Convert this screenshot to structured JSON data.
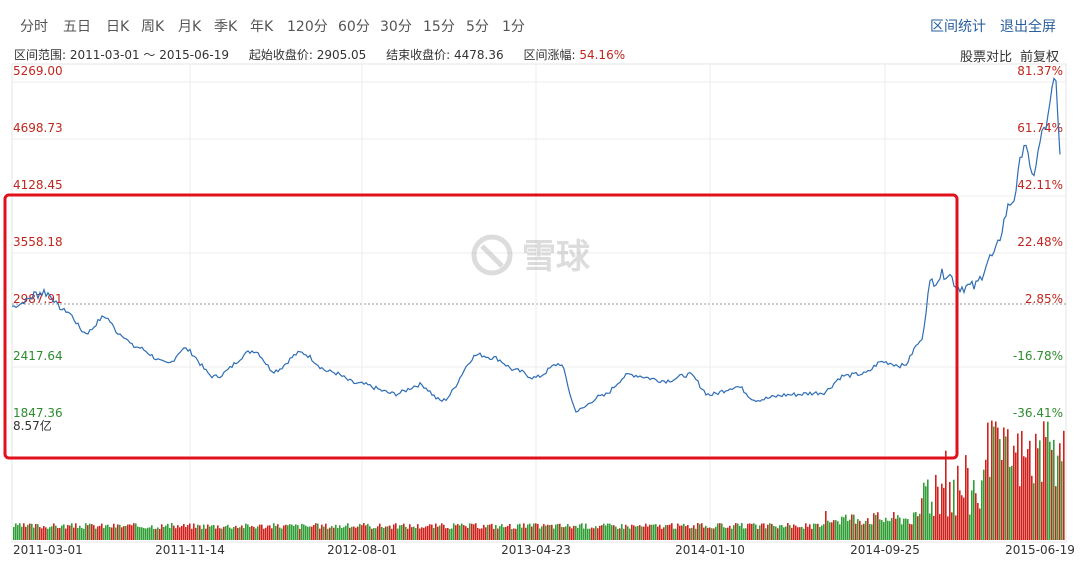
{
  "toolbar": {
    "tabs": [
      "分时",
      "五日",
      "日K",
      "周K",
      "月K",
      "季K",
      "年K",
      "120分",
      "60分",
      "30分",
      "15分",
      "5分",
      "1分"
    ],
    "stats_label": "区间统计",
    "exit_label": "退出全屏"
  },
  "info": {
    "range_label": "区间范围:",
    "range_value": "2011-03-01 ～ 2015-06-19",
    "open_label": "起始收盘价:",
    "open_value": "2905.05",
    "close_label": "结束收盘价:",
    "close_value": "4478.36",
    "change_label": "区间涨幅:",
    "change_value": "54.16%"
  },
  "tools": {
    "compare": "股票对比",
    "adjust": "前复权"
  },
  "watermark": "雪球",
  "colors": {
    "line": "#2e6db4",
    "up": "#d0221d",
    "down": "#2f9e35",
    "highlight": "#e0111b",
    "axis_left": "#c0261f",
    "axis_left_green": "#2e8b2e"
  },
  "chart_data": {
    "type": "line",
    "y_ticks_left": [
      "5269.00",
      "4698.73",
      "4128.45",
      "3558.18",
      "2987.91",
      "2417.64",
      "1847.36"
    ],
    "y_ticks_right": [
      "81.37%",
      "61.74%",
      "42.11%",
      "22.48%",
      "2.85%",
      "-16.78%",
      "-36.41%"
    ],
    "ylim": [
      1847.36,
      5269.0
    ],
    "x_ticks": [
      "2011-03-01",
      "2011-11-14",
      "2012-08-01",
      "2013-04-23",
      "2014-01-10",
      "2014-09-25",
      "2015-06-19"
    ],
    "volume_label": "8.57亿",
    "series": [
      {
        "points": [
          [
            "2011-03-01",
            2905
          ],
          [
            "2011-04-18",
            3050
          ],
          [
            "2011-05-20",
            2860
          ],
          [
            "2011-06-20",
            2640
          ],
          [
            "2011-07-18",
            2800
          ],
          [
            "2011-08-10",
            2630
          ],
          [
            "2011-09-01",
            2500
          ],
          [
            "2011-10-21",
            2330
          ],
          [
            "2011-11-14",
            2480
          ],
          [
            "2011-12-30",
            2200
          ],
          [
            "2012-02-27",
            2460
          ],
          [
            "2012-03-28",
            2260
          ],
          [
            "2012-05-07",
            2440
          ],
          [
            "2012-06-20",
            2250
          ],
          [
            "2012-08-01",
            2130
          ],
          [
            "2012-09-26",
            2030
          ],
          [
            "2012-11-02",
            2120
          ],
          [
            "2012-12-04",
            1960
          ],
          [
            "2013-01-28",
            2420
          ],
          [
            "2013-02-20",
            2390
          ],
          [
            "2013-03-27",
            2260
          ],
          [
            "2013-04-23",
            2190
          ],
          [
            "2013-05-30",
            2330
          ],
          [
            "2013-06-25",
            1860
          ],
          [
            "2013-07-30",
            2000
          ],
          [
            "2013-09-12",
            2220
          ],
          [
            "2013-11-05",
            2160
          ],
          [
            "2013-12-10",
            2220
          ],
          [
            "2014-01-10",
            2020
          ],
          [
            "2014-02-20",
            2100
          ],
          [
            "2014-03-20",
            1970
          ],
          [
            "2014-05-09",
            2020
          ],
          [
            "2014-06-27",
            2040
          ],
          [
            "2014-07-31",
            2210
          ],
          [
            "2014-08-29",
            2230
          ],
          [
            "2014-09-25",
            2350
          ],
          [
            "2014-10-27",
            2310
          ],
          [
            "2014-11-21",
            2540
          ],
          [
            "2014-12-09",
            3160
          ],
          [
            "2014-12-31",
            3240
          ],
          [
            "2015-01-19",
            3100
          ],
          [
            "2015-02-10",
            3100
          ],
          [
            "2015-03-09",
            3400
          ],
          [
            "2015-04-08",
            3950
          ],
          [
            "2015-04-28",
            4550
          ],
          [
            "2015-05-07",
            4200
          ],
          [
            "2015-05-28",
            4700
          ],
          [
            "2015-06-12",
            5178
          ],
          [
            "2015-06-19",
            4478
          ]
        ]
      }
    ]
  }
}
